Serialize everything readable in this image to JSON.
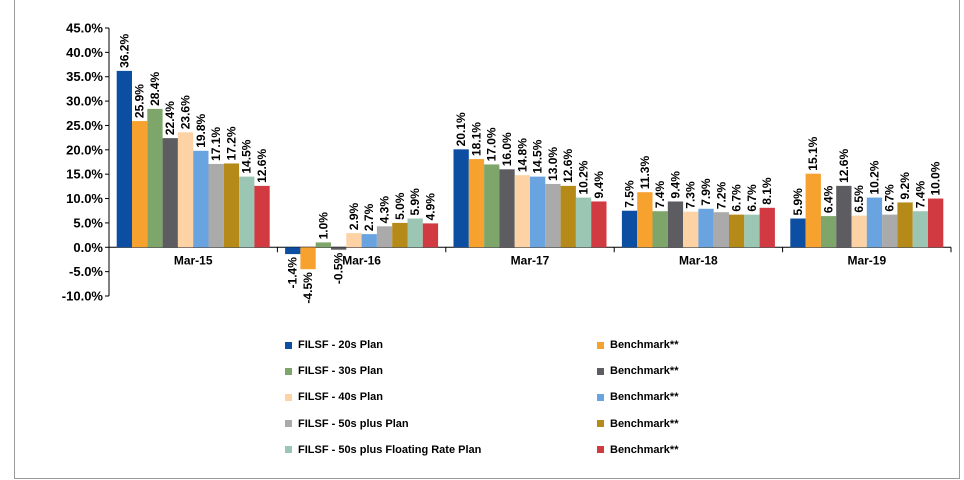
{
  "chart_data": {
    "type": "bar",
    "title": "",
    "xlabel": "",
    "ylabel": "",
    "ylim": [
      -10,
      45
    ],
    "y_tick_values": [
      -10,
      -5,
      0,
      5,
      10,
      15,
      20,
      25,
      30,
      35,
      40,
      45
    ],
    "y_tick_labels": [
      "-10.0%",
      "-5.0%",
      "0.0%",
      "5.0%",
      "10.0%",
      "15.0%",
      "20.0%",
      "25.0%",
      "30.0%",
      "35.0%",
      "40.0%",
      "45.0%"
    ],
    "grid": false,
    "legend_position": "bottom",
    "categories": [
      "Mar-15",
      "Mar-16",
      "Mar-17",
      "Mar-18",
      "Mar-19"
    ],
    "series": [
      {
        "name": "FILSF - 20s Plan",
        "color": "#0b4ea2",
        "values": [
          36.2,
          -1.4,
          20.1,
          7.5,
          5.9
        ],
        "labels": [
          "36.2%",
          "-1.4%",
          "20.1%",
          "7.5%",
          "5.9%"
        ]
      },
      {
        "name": "Benchmark**",
        "color": "#f7a12e",
        "values": [
          25.9,
          -4.5,
          18.1,
          11.3,
          15.1
        ],
        "labels": [
          "25.9%",
          "-4.5%",
          "18.1%",
          "11.3%",
          "15.1%"
        ]
      },
      {
        "name": "FILSF - 30s Plan",
        "color": "#7fa66a",
        "values": [
          28.4,
          1.0,
          17.0,
          7.4,
          6.4
        ],
        "labels": [
          "28.4%",
          "1.0%",
          "17.0%",
          "7.4%",
          "6.4%"
        ]
      },
      {
        "name": "Benchmark**",
        "color": "#5d5d61",
        "values": [
          22.4,
          -0.5,
          16.0,
          9.4,
          12.6
        ],
        "labels": [
          "22.4%",
          "-0.5%",
          "16.0%",
          "9.4%",
          "12.6%"
        ]
      },
      {
        "name": "FILSF - 40s Plan",
        "color": "#fdd3a6",
        "values": [
          23.6,
          2.9,
          14.8,
          7.3,
          6.5
        ],
        "labels": [
          "23.6%",
          "2.9%",
          "14.8%",
          "7.3%",
          "6.5%"
        ]
      },
      {
        "name": "Benchmark**",
        "color": "#6aa4e0",
        "values": [
          19.8,
          2.7,
          14.5,
          7.9,
          10.2
        ],
        "labels": [
          "19.8%",
          "2.7%",
          "14.5%",
          "7.9%",
          "10.2%"
        ]
      },
      {
        "name": "FILSF - 50s plus Plan",
        "color": "#aaaaaa",
        "values": [
          17.1,
          4.3,
          13.0,
          7.2,
          6.7
        ],
        "labels": [
          "17.1%",
          "4.3%",
          "13.0%",
          "7.2%",
          "6.7%"
        ]
      },
      {
        "name": "Benchmark**",
        "color": "#b58a18",
        "values": [
          17.2,
          5.0,
          12.6,
          6.7,
          9.2
        ],
        "labels": [
          "17.2%",
          "5.0%",
          "12.6%",
          "6.7%",
          "9.2%"
        ]
      },
      {
        "name": "FILSF - 50s plus Floating Rate Plan",
        "color": "#9cc6b4",
        "values": [
          14.5,
          5.9,
          10.2,
          6.7,
          7.4
        ],
        "labels": [
          "14.5%",
          "5.9%",
          "10.2%",
          "6.7%",
          "7.4%"
        ]
      },
      {
        "name": "Benchmark**",
        "color": "#d03a40",
        "values": [
          12.6,
          4.9,
          9.4,
          8.1,
          10.0
        ],
        "labels": [
          "12.6%",
          "4.9%",
          "9.4%",
          "8.1%",
          "10.0%"
        ]
      }
    ]
  }
}
